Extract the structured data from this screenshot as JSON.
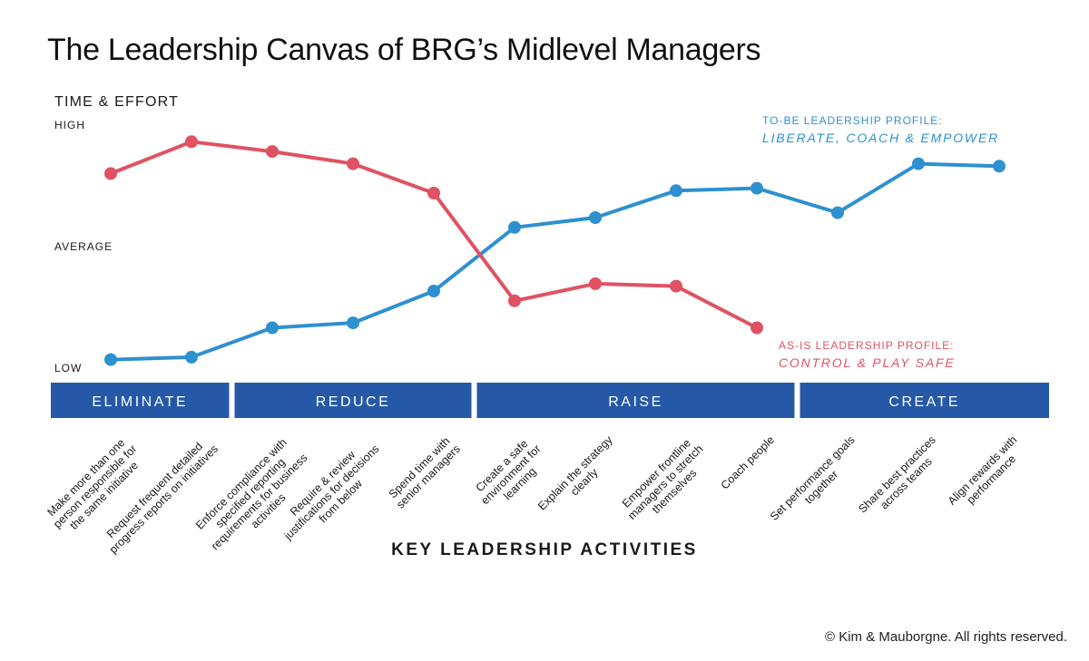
{
  "title": "The Leadership Canvas of BRG’s Midlevel Managers",
  "copyright": "© Kim & Mauborgne. All rights reserved.",
  "colors": {
    "to_be": "#2e90cf",
    "as_is": "#e05263",
    "band": "#2559a8"
  },
  "chart_data": {
    "type": "line",
    "ylabel": "TIME & EFFORT",
    "xlabel": "KEY LEADERSHIP ACTIVITIES",
    "ytick_labels": [
      "HIGH",
      "AVERAGE",
      "LOW"
    ],
    "ylim": [
      0,
      10
    ],
    "groups": [
      {
        "label": "ELIMINATE",
        "count": 2
      },
      {
        "label": "REDUCE",
        "count": 3
      },
      {
        "label": "RAISE",
        "count": 4
      },
      {
        "label": "CREATE",
        "count": 3
      }
    ],
    "categories": [
      "Make more than one\nperson responsible for\nthe same initiative",
      "Request frequent detailed\nprogress reports on initiatives",
      "Enforce compliance with\nspecified reporting\nrequirements for business\nactivities",
      "Require & review\njustifications for decisions\nfrom below",
      "Spend time with\nsenior managers",
      "Create a safe\nenvironment for\nlearning",
      "Explain the strategy\nclearly",
      "Empower frontline\nmanagers to stretch\nthemselves",
      "Coach people",
      "Set performance goals\ntogether",
      "Share best practices\nacross teams",
      "Align rewards with\nperformance"
    ],
    "series": [
      {
        "name": "TO-BE LEADERSHIP PROFILE:",
        "subtitle": "LIBERATE, COACH & EMPOWER",
        "color": "#2e90cf",
        "values": [
          0.2,
          0.3,
          1.5,
          1.7,
          3.0,
          5.6,
          6.0,
          7.1,
          7.2,
          6.2,
          8.2,
          8.1
        ]
      },
      {
        "name": "AS-IS LEADERSHIP PROFILE:",
        "subtitle": "CONTROL & PLAY SAFE",
        "color": "#e05263",
        "values": [
          7.8,
          9.1,
          8.7,
          8.2,
          7.0,
          2.6,
          3.3,
          3.2,
          1.5,
          null,
          null,
          null
        ]
      }
    ],
    "grid": false,
    "legend": "inline labels (top-right and bottom-right)"
  }
}
